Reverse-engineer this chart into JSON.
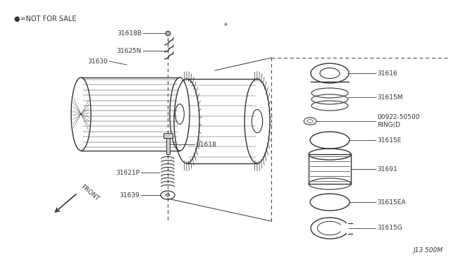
{
  "background_color": "#ffffff",
  "diagram_id": "J13 500M",
  "not_for_sale_note": "●=NOT FOR SALE",
  "star_note": "*",
  "dark": "#333333",
  "med": "#777777",
  "fig_w": 6.4,
  "fig_h": 3.72,
  "dpi": 100,
  "xlim": [
    0,
    640
  ],
  "ylim": [
    0,
    372
  ]
}
